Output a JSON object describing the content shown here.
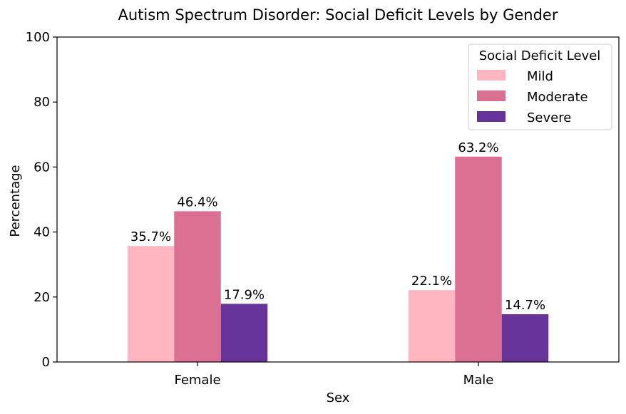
{
  "chart_data": {
    "type": "bar",
    "title": "Autism Spectrum Disorder: Social Deficit Levels by Gender",
    "xlabel": "Sex",
    "ylabel": "Percentage",
    "categories": [
      "Female",
      "Male"
    ],
    "series": [
      {
        "name": "Mild",
        "values": [
          35.7,
          22.1
        ],
        "labels": [
          "35.7%",
          "22.1%"
        ],
        "color": "#ffb6c1"
      },
      {
        "name": "Moderate",
        "values": [
          46.4,
          63.2
        ],
        "labels": [
          "46.4%",
          "63.2%"
        ],
        "color": "#db7093"
      },
      {
        "name": "Severe",
        "values": [
          17.9,
          14.7
        ],
        "labels": [
          "17.9%",
          "14.7%"
        ],
        "color": "#663399"
      }
    ],
    "ylim": [
      0,
      100
    ],
    "yticks": [
      0,
      20,
      40,
      60,
      80,
      100
    ],
    "ytick_labels": [
      "0",
      "20",
      "40",
      "60",
      "80",
      "100"
    ],
    "grid": false,
    "legend": {
      "title": "Social Deficit Level",
      "placement": "top-right"
    }
  }
}
